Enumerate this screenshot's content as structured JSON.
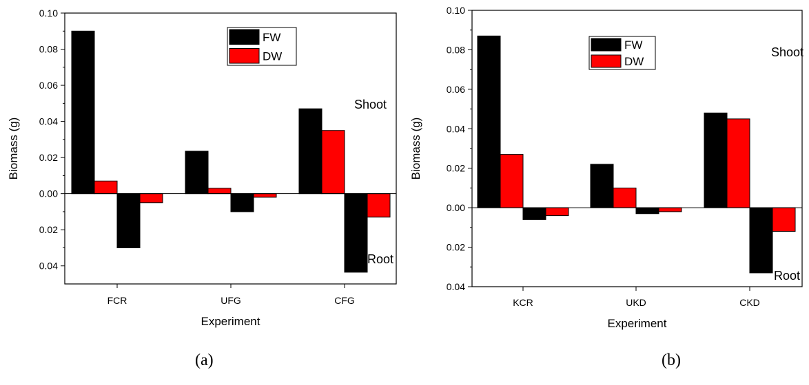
{
  "chart_data": [
    {
      "type": "bar",
      "panel_label": "(a)",
      "categories": [
        "FCR",
        "UFG",
        "CFG"
      ],
      "series": [
        {
          "name": "FW",
          "color": "#000000",
          "shoot": [
            0.09,
            0.0235,
            0.047
          ],
          "root": [
            0.03,
            0.01,
            0.0435
          ]
        },
        {
          "name": "DW",
          "color": "#ff0000",
          "shoot": [
            0.007,
            0.003,
            0.035
          ],
          "root": [
            0.005,
            0.002,
            0.013
          ]
        }
      ],
      "xlabel": "Experiment",
      "ylabel": "Biomass (g)",
      "ylim": [
        -0.05,
        0.1
      ],
      "yticks": [
        0.1,
        0.08,
        0.06,
        0.04,
        0.02,
        0.0,
        -0.02,
        -0.04
      ],
      "ytick_labels": [
        "0.10",
        "0.08",
        "0.06",
        "0.04",
        "0.02",
        "0.00",
        "0.02",
        "0.04"
      ],
      "annotations": [
        "Shoot",
        "Root"
      ],
      "legend": [
        "FW",
        "DW"
      ]
    },
    {
      "type": "bar",
      "panel_label": "(b)",
      "categories": [
        "KCR",
        "UKD",
        "CKD"
      ],
      "series": [
        {
          "name": "FW",
          "color": "#000000",
          "shoot": [
            0.087,
            0.022,
            0.048
          ],
          "root": [
            0.006,
            0.003,
            0.033
          ]
        },
        {
          "name": "DW",
          "color": "#ff0000",
          "shoot": [
            0.027,
            0.01,
            0.045
          ],
          "root": [
            0.004,
            0.002,
            0.012
          ]
        }
      ],
      "xlabel": "Experiment",
      "ylabel": "Biomass (g)",
      "ylim": [
        -0.04,
        0.1
      ],
      "yticks": [
        0.1,
        0.08,
        0.06,
        0.04,
        0.02,
        0.0,
        -0.02,
        -0.04
      ],
      "ytick_labels": [
        "0.10",
        "0.08",
        "0.06",
        "0.04",
        "0.02",
        "0.00",
        "0.02",
        "0.04"
      ],
      "annotations": [
        "Shoot",
        "Root"
      ],
      "legend": [
        "FW",
        "DW"
      ]
    }
  ]
}
